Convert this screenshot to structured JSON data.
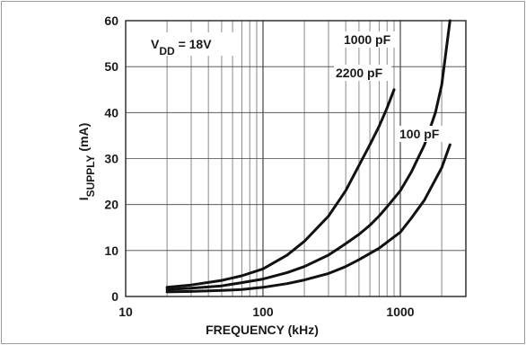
{
  "chart_data": {
    "type": "line",
    "xscale": "log",
    "xlim": [
      10,
      3000
    ],
    "ylim": [
      0,
      60
    ],
    "grid": true,
    "xlabel": "FREQUENCY (kHz)",
    "ylabel": {
      "main": "I",
      "sub": "SUPPLY",
      "unit": " (mA)"
    },
    "x_ticks": [
      10,
      100,
      1000
    ],
    "y_ticks": [
      0,
      10,
      20,
      30,
      40,
      50,
      60
    ],
    "annotation": {
      "main": "V",
      "sub": "DD",
      "rest": " = 18V"
    },
    "series": [
      {
        "name": "1000 pF",
        "x": [
          20,
          30,
          50,
          70,
          100,
          150,
          200,
          300,
          400,
          500,
          600,
          700,
          800,
          900
        ],
        "y": [
          2.0,
          2.5,
          3.5,
          4.5,
          6,
          9,
          12,
          17.5,
          23,
          28.5,
          33,
          37,
          41,
          45
        ]
      },
      {
        "name": "2200 pF",
        "x": [
          20,
          30,
          50,
          70,
          100,
          150,
          200,
          300,
          400,
          500,
          600,
          700,
          800,
          1000,
          1200,
          1500,
          1800,
          2000,
          2300
        ],
        "y": [
          1.5,
          1.8,
          2.3,
          3.0,
          3.8,
          5.2,
          6.5,
          9,
          11.5,
          13.5,
          15.5,
          17.5,
          19.5,
          23,
          27,
          33,
          40,
          46,
          60
        ]
      },
      {
        "name": "100 pF",
        "x": [
          20,
          30,
          50,
          70,
          100,
          150,
          200,
          300,
          400,
          500,
          700,
          1000,
          1200,
          1500,
          2000,
          2300
        ],
        "y": [
          1.0,
          1.1,
          1.3,
          1.5,
          2,
          2.8,
          3.6,
          5,
          6.5,
          8,
          10.5,
          14,
          17,
          21,
          28,
          33
        ]
      }
    ]
  }
}
